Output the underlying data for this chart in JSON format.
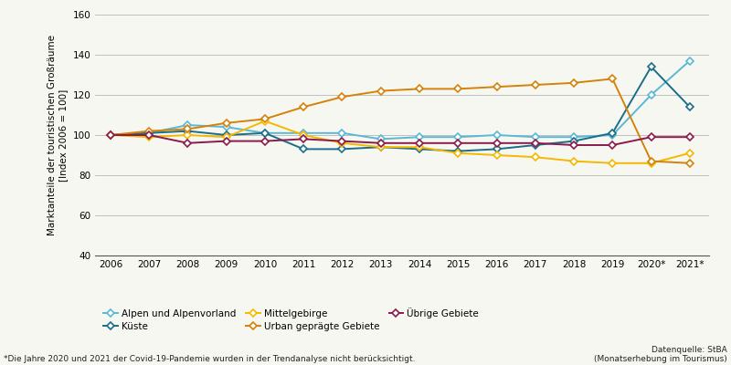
{
  "years": [
    2006,
    2007,
    2008,
    2009,
    2010,
    2011,
    2012,
    2013,
    2014,
    2015,
    2016,
    2017,
    2018,
    2019,
    2020,
    2021
  ],
  "year_labels": [
    "2006",
    "2007",
    "2008",
    "2009",
    "2010",
    "2011",
    "2012",
    "2013",
    "2014",
    "2015",
    "2016",
    "2017",
    "2018",
    "2019",
    "2020*",
    "2021*"
  ],
  "alpen": [
    100,
    101,
    105,
    104,
    101,
    101,
    101,
    98,
    99,
    99,
    100,
    99,
    99,
    100,
    120,
    137
  ],
  "kueste": [
    100,
    101,
    102,
    100,
    101,
    93,
    93,
    94,
    93,
    92,
    93,
    95,
    97,
    101,
    134,
    114
  ],
  "mittelgebirge": [
    100,
    99,
    100,
    99,
    107,
    100,
    96,
    94,
    94,
    91,
    90,
    89,
    87,
    86,
    86,
    91
  ],
  "urban": [
    100,
    102,
    103,
    106,
    108,
    114,
    119,
    122,
    123,
    123,
    124,
    125,
    126,
    128,
    87,
    86
  ],
  "uebrige": [
    100,
    100,
    96,
    97,
    97,
    98,
    97,
    96,
    96,
    96,
    96,
    96,
    95,
    95,
    99,
    99
  ],
  "color_alpen": "#5bb8d4",
  "color_kueste": "#1a6e8a",
  "color_mittelgebirge": "#f5b800",
  "color_urban": "#d4820a",
  "color_uebrige": "#8b1a4a",
  "ylabel_line1": "Marktanteile der touristischen Großräume",
  "ylabel_line2": "[Index 2006 = 100]",
  "ylim": [
    40,
    160
  ],
  "yticks": [
    40,
    60,
    80,
    100,
    120,
    140,
    160
  ],
  "label_alpen": "Alpen und Alpenvorland",
  "label_kueste": "Küste",
  "label_mittelgebirge": "Mittelgebirge",
  "label_urban": "Urban geprägte Gebiete",
  "label_uebrige": "Übrige Gebiete",
  "footnote": "*Die Jahre 2020 und 2021 der Covid-19-Pandemie wurden in der Trendanalyse nicht berücksichtigt.",
  "source_line1": "Datenquelle: StBA",
  "source_line2": "(Monatserhebung im Tourismus)",
  "bg_color": "#f7f7f2"
}
